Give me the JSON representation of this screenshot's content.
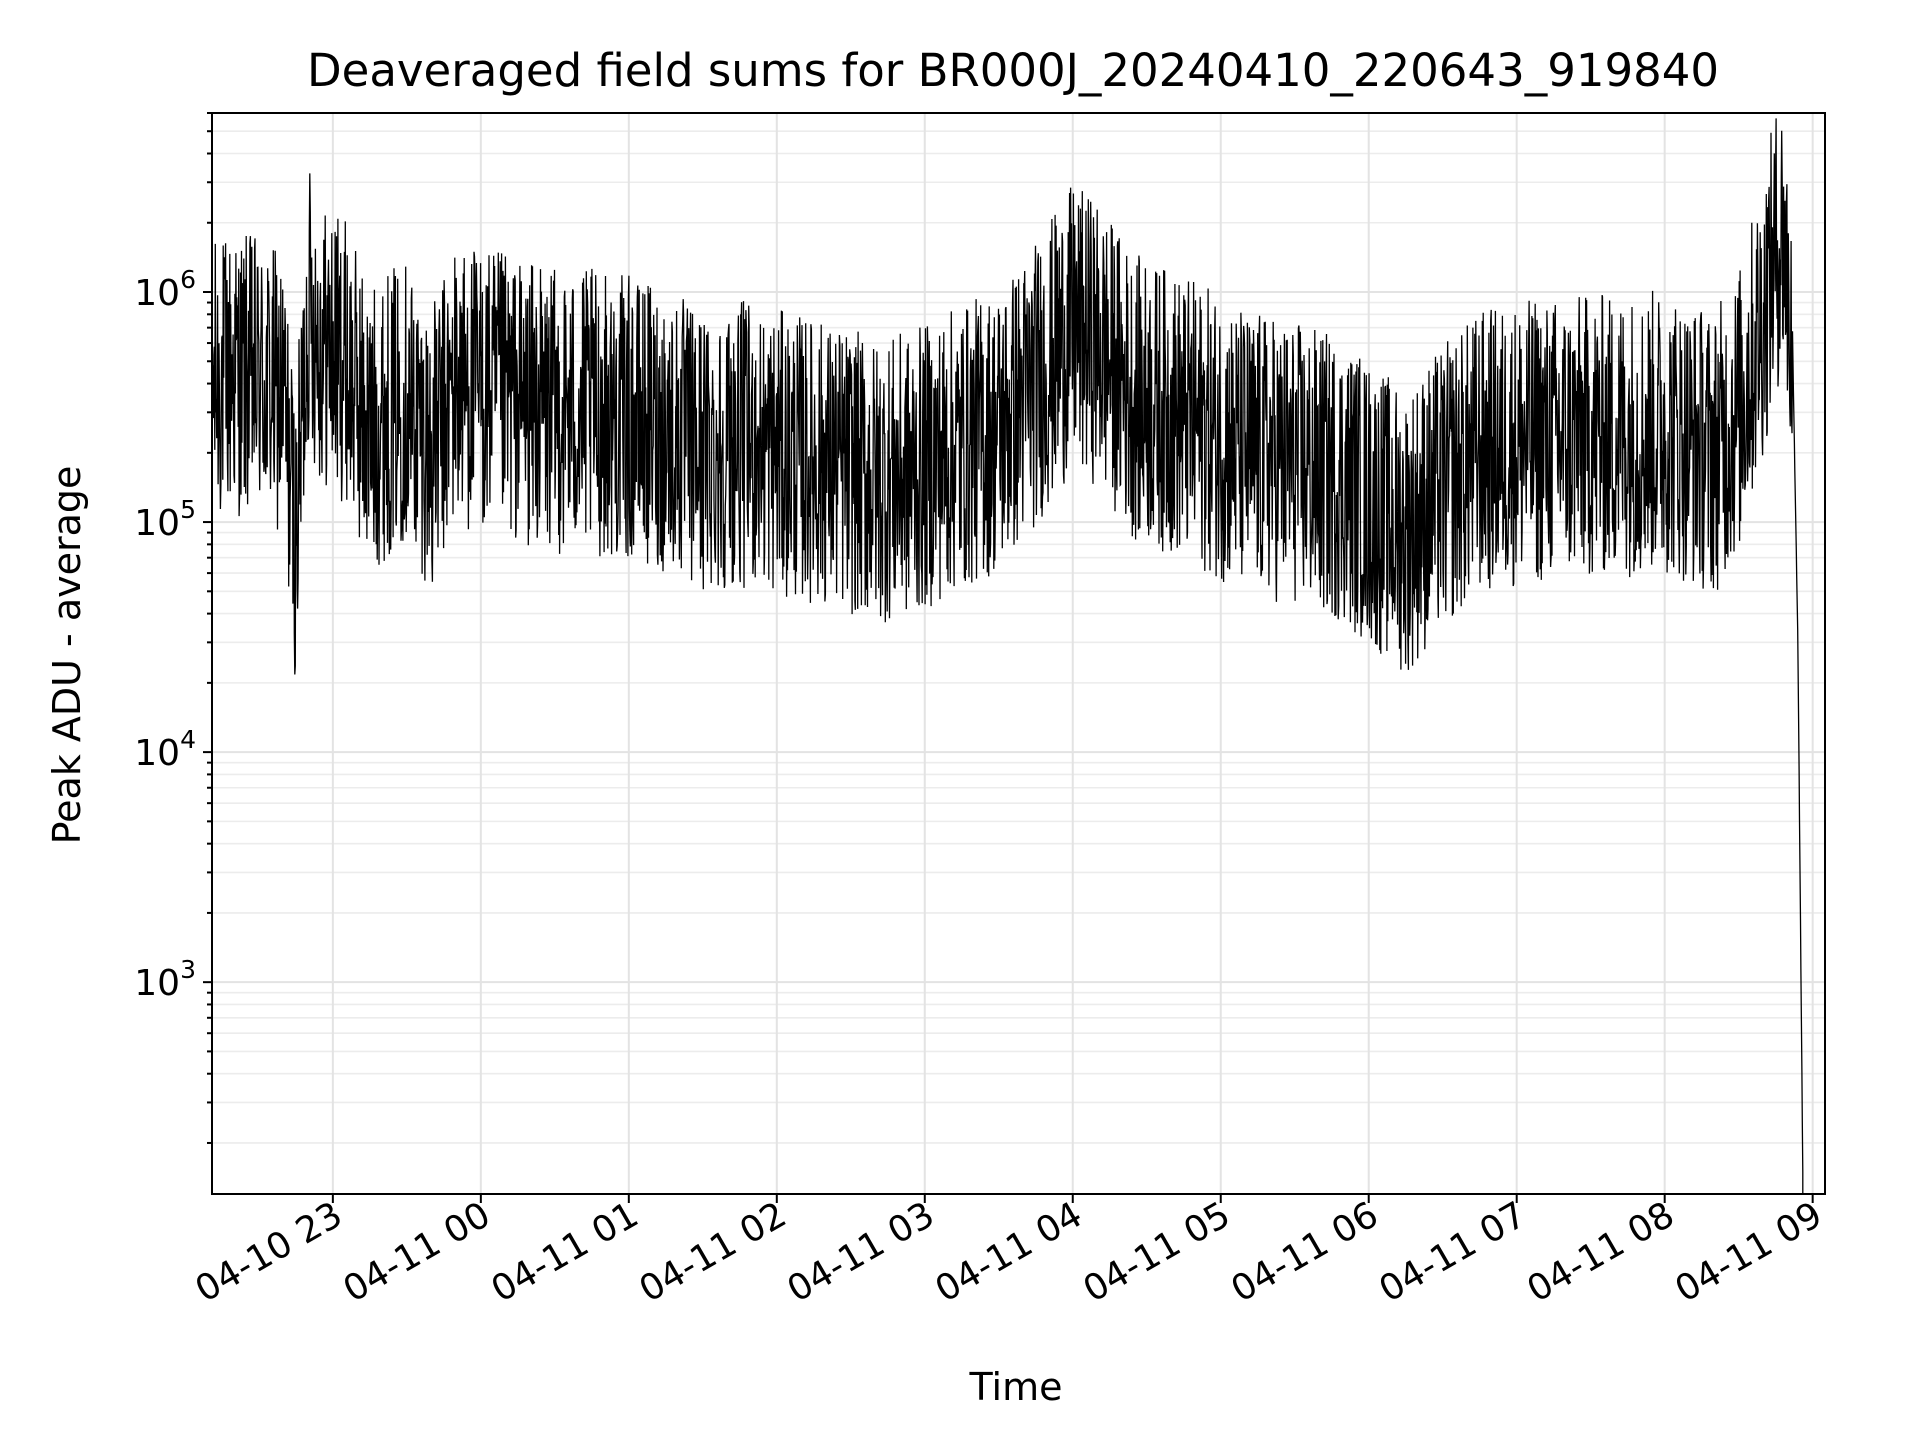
{
  "chart_data": {
    "type": "line",
    "title": "Deaveraged field sums for BR000J_20240410_220643_919840",
    "xlabel": "Time",
    "ylabel": "Peak ADU - average",
    "yscale": "log",
    "ylim": [
      120,
      6000000
    ],
    "grid": true,
    "grid_minor": true,
    "x_ticks": [
      {
        "value": "2024-04-10T23:00",
        "label": "04-10 23"
      },
      {
        "value": "2024-04-11T00:00",
        "label": "04-11 00"
      },
      {
        "value": "2024-04-11T01:00",
        "label": "04-11 01"
      },
      {
        "value": "2024-04-11T02:00",
        "label": "04-11 02"
      },
      {
        "value": "2024-04-11T03:00",
        "label": "04-11 03"
      },
      {
        "value": "2024-04-11T04:00",
        "label": "04-11 04"
      },
      {
        "value": "2024-04-11T05:00",
        "label": "04-11 05"
      },
      {
        "value": "2024-04-11T06:00",
        "label": "04-11 06"
      },
      {
        "value": "2024-04-11T07:00",
        "label": "04-11 07"
      },
      {
        "value": "2024-04-11T08:00",
        "label": "04-11 08"
      },
      {
        "value": "2024-04-11T09:00",
        "label": "04-11 09"
      }
    ],
    "y_ticks": [
      {
        "value": 1000,
        "base": "10",
        "exp": "3"
      },
      {
        "value": 10000,
        "base": "10",
        "exp": "4"
      },
      {
        "value": 100000,
        "base": "10",
        "exp": "5"
      },
      {
        "value": 1000000,
        "base": "10",
        "exp": "6"
      }
    ],
    "xlim": [
      "2024-04-10T22:11",
      "2024-04-11T09:05"
    ],
    "series_color": "#000000",
    "series": [
      {
        "x": [
          "2024-04-10T22:11",
          "2024-04-10T22:20",
          "2024-04-10T22:30",
          "2024-04-10T22:40",
          "2024-04-10T22:45",
          "2024-04-10T22:50",
          "2024-04-10T22:55",
          "2024-04-10T23:05",
          "2024-04-10T23:15",
          "2024-04-10T23:30",
          "2024-04-10T23:40",
          "2024-04-10T23:50",
          "2024-04-11T00:10",
          "2024-04-11T00:30",
          "2024-04-11T00:45",
          "2024-04-11T01:00",
          "2024-04-11T01:15",
          "2024-04-11T01:30",
          "2024-04-11T01:45",
          "2024-04-11T02:00",
          "2024-04-11T02:20",
          "2024-04-11T02:40",
          "2024-04-11T02:55",
          "2024-04-11T03:10",
          "2024-04-11T03:30",
          "2024-04-11T03:45",
          "2024-04-11T04:00",
          "2024-04-11T04:10",
          "2024-04-11T04:25",
          "2024-04-11T04:40",
          "2024-04-11T04:55",
          "2024-04-11T05:10",
          "2024-04-11T05:30",
          "2024-04-11T05:50",
          "2024-04-11T06:05",
          "2024-04-11T06:15",
          "2024-04-11T06:30",
          "2024-04-11T06:45",
          "2024-04-11T07:00",
          "2024-04-11T07:20",
          "2024-04-11T07:40",
          "2024-04-11T08:00",
          "2024-04-11T08:20",
          "2024-04-11T08:30",
          "2024-04-11T08:40",
          "2024-04-11T08:45",
          "2024-04-11T08:48",
          "2024-04-11T08:52",
          "2024-04-11T08:54",
          "2024-04-11T08:56"
        ],
        "y": [
          400000,
          450000,
          420000,
          350000,
          80000,
          900000,
          600000,
          500000,
          250000,
          350000,
          200000,
          400000,
          350000,
          300000,
          300000,
          280000,
          250000,
          200000,
          220000,
          200000,
          180000,
          150000,
          160000,
          200000,
          250000,
          400000,
          700000,
          600000,
          350000,
          300000,
          250000,
          200000,
          180000,
          150000,
          110000,
          90000,
          140000,
          200000,
          220000,
          230000,
          240000,
          250000,
          200000,
          300000,
          800000,
          1500000,
          1800000,
          500000,
          30000,
          150
        ]
      }
    ]
  }
}
